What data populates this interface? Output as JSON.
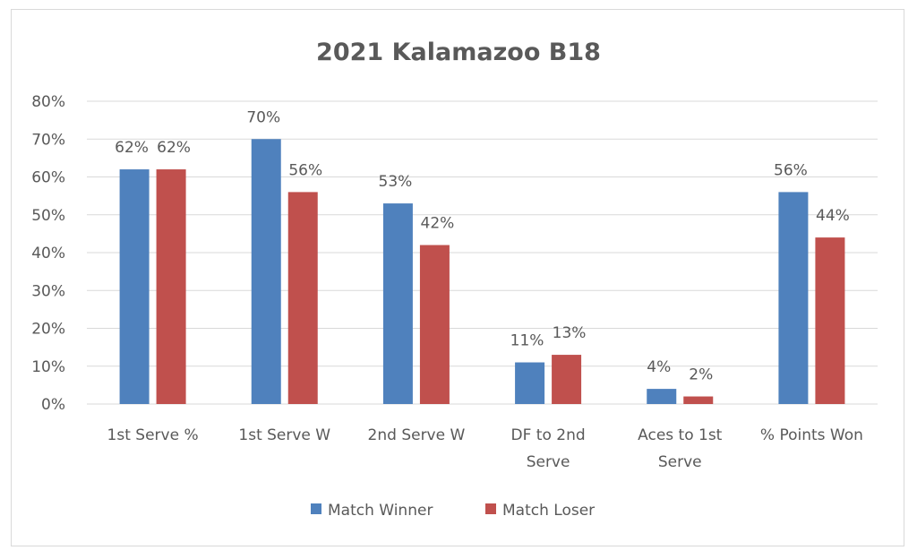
{
  "chart_data": {
    "type": "bar",
    "title": "2021 Kalamazoo B18",
    "categories": [
      [
        "1st Serve %"
      ],
      [
        "1st Serve W"
      ],
      [
        "2nd Serve W"
      ],
      [
        "DF to 2nd",
        "Serve"
      ],
      [
        "Aces to 1st",
        "Serve"
      ],
      [
        "% Points Won"
      ]
    ],
    "series": [
      {
        "name": "Match Winner",
        "color": "#4f81bd",
        "values": [
          62,
          70,
          53,
          11,
          4,
          56
        ],
        "labels": [
          "62%",
          "70%",
          "53%",
          "11%",
          "4%",
          "56%"
        ]
      },
      {
        "name": "Match Loser",
        "color": "#c0504d",
        "values": [
          62,
          56,
          42,
          13,
          2,
          44
        ],
        "labels": [
          "62%",
          "56%",
          "42%",
          "13%",
          "2%",
          "44%"
        ]
      }
    ],
    "ylim": [
      0,
      80
    ],
    "yticks": [
      0,
      10,
      20,
      30,
      40,
      50,
      60,
      70,
      80
    ],
    "ytick_labels": [
      "0%",
      "10%",
      "20%",
      "30%",
      "40%",
      "50%",
      "60%",
      "70%",
      "80%"
    ],
    "grid": true,
    "legend": "bottom"
  }
}
